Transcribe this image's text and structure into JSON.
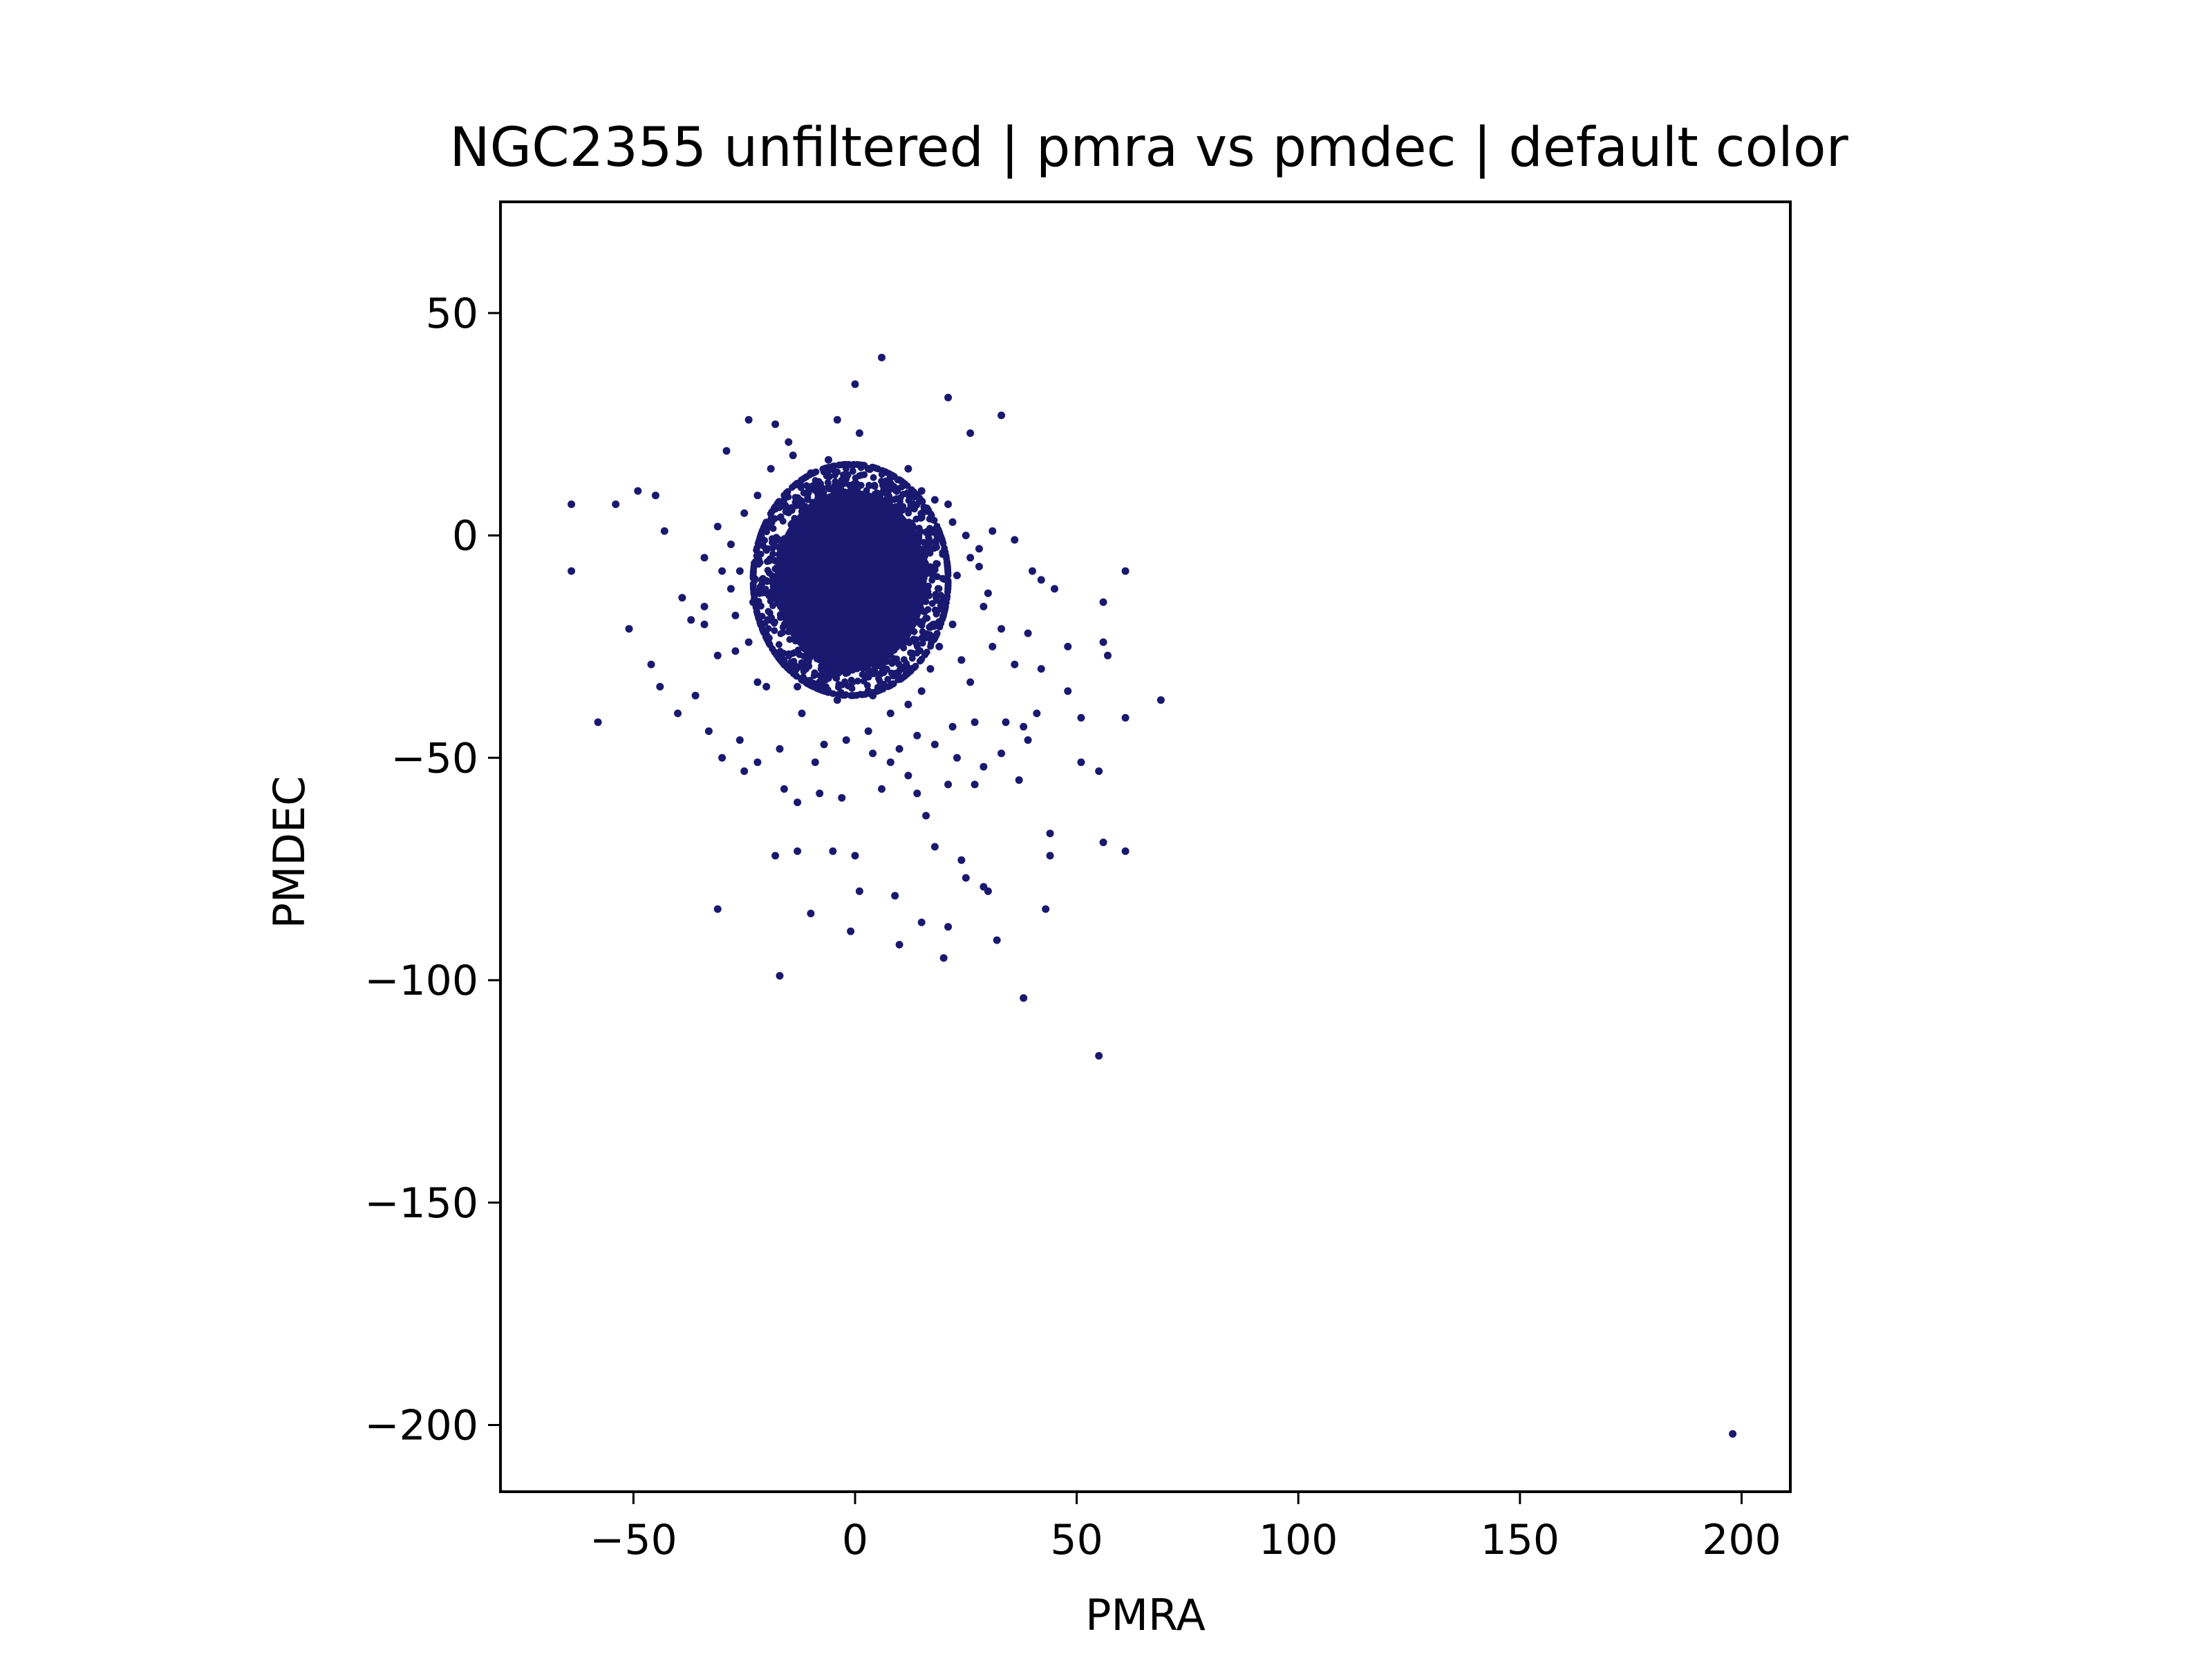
{
  "chart_data": {
    "type": "scatter",
    "title": "NGC2355 unfiltered | pmra vs pmdec | default color",
    "xlabel": "PMRA",
    "ylabel": "PMDEC",
    "xlim": [
      -80,
      211
    ],
    "ylim": [
      -215,
      75
    ],
    "xticks": [
      -50,
      0,
      50,
      100,
      150,
      200
    ],
    "yticks": [
      -200,
      -150,
      -100,
      -50,
      0,
      50
    ],
    "xtick_labels": [
      "−50",
      "0",
      "50",
      "100",
      "150",
      "200"
    ],
    "ytick_labels": [
      "−200",
      "−150",
      "−100",
      "−50",
      "0",
      "50"
    ],
    "grid": false,
    "legend": "none",
    "marker_color": "#191970",
    "series": [
      {
        "core": {
          "center": [
            -1,
            -10
          ],
          "radius_x": 22,
          "radius_y": 26,
          "approx_points": 4000
        },
        "points": [
          [
            -64,
            7
          ],
          [
            -64,
            -8
          ],
          [
            -54,
            7
          ],
          [
            -49,
            10
          ],
          [
            -45,
            9
          ],
          [
            -43,
            1
          ],
          [
            -51,
            -21
          ],
          [
            -46,
            -29
          ],
          [
            -44,
            -34
          ],
          [
            -40,
            -40
          ],
          [
            -36,
            -36
          ],
          [
            -33,
            -44
          ],
          [
            -58,
            -42
          ],
          [
            -34,
            -16
          ],
          [
            -31,
            2
          ],
          [
            -30,
            -50
          ],
          [
            -25,
            -53
          ],
          [
            -26,
            -46
          ],
          [
            -28,
            -12
          ],
          [
            -24,
            26
          ],
          [
            -18,
            25
          ],
          [
            -15,
            21
          ],
          [
            -29,
            19
          ],
          [
            -31,
            -84
          ],
          [
            -18,
            -72
          ],
          [
            -17,
            -99
          ],
          [
            -13,
            -60
          ],
          [
            -13,
            -71
          ],
          [
            -10,
            -85
          ],
          [
            -5,
            -71
          ],
          [
            -8,
            -58
          ],
          [
            -3,
            -59
          ],
          [
            0,
            34
          ],
          [
            6,
            40
          ],
          [
            21,
            31
          ],
          [
            33,
            27
          ],
          [
            26,
            23
          ],
          [
            1,
            23
          ],
          [
            -1,
            -89
          ],
          [
            1,
            -80
          ],
          [
            0,
            -72
          ],
          [
            9,
            -81
          ],
          [
            10,
            -92
          ],
          [
            15,
            -87
          ],
          [
            18,
            -70
          ],
          [
            20,
            -95
          ],
          [
            21,
            -88
          ],
          [
            24,
            -73
          ],
          [
            25,
            -77
          ],
          [
            29,
            -79
          ],
          [
            30,
            -80
          ],
          [
            32,
            -91
          ],
          [
            38,
            -104
          ],
          [
            43,
            -84
          ],
          [
            44,
            -67
          ],
          [
            44,
            -72
          ],
          [
            55,
            -117
          ],
          [
            56,
            -69
          ],
          [
            61,
            -71
          ],
          [
            55,
            -53
          ],
          [
            51,
            -41
          ],
          [
            61,
            -41
          ],
          [
            69,
            -37
          ],
          [
            48,
            -35
          ],
          [
            51,
            -51
          ],
          [
            41,
            -40
          ],
          [
            39,
            -46
          ],
          [
            38,
            -43
          ],
          [
            37,
            -55
          ],
          [
            34,
            -42
          ],
          [
            36,
            -29
          ],
          [
            39,
            -22
          ],
          [
            42,
            -10
          ],
          [
            40,
            -8
          ],
          [
            45,
            -12
          ],
          [
            61,
            -8
          ],
          [
            56,
            -24
          ],
          [
            57,
            -27
          ],
          [
            56,
            -15
          ],
          [
            48,
            -25
          ],
          [
            36,
            -1
          ],
          [
            31,
            1
          ],
          [
            21,
            7
          ],
          [
            26,
            -5
          ],
          [
            28,
            -3
          ],
          [
            30,
            -13
          ],
          [
            33,
            -21
          ],
          [
            27,
            -42
          ],
          [
            23,
            -50
          ],
          [
            27,
            -56
          ],
          [
            21,
            -56
          ],
          [
            16,
            -63
          ],
          [
            14,
            -58
          ],
          [
            12,
            -54
          ],
          [
            8,
            -51
          ],
          [
            6,
            -57
          ],
          [
            3,
            -44
          ],
          [
            -2,
            -46
          ],
          [
            -7,
            -47
          ],
          [
            -12,
            -40
          ],
          [
            -17,
            -48
          ],
          [
            -20,
            -34
          ],
          [
            -22,
            -33
          ],
          [
            -27,
            -26
          ],
          [
            -31,
            -27
          ],
          [
            -34,
            -20
          ],
          [
            -39,
            -14
          ],
          [
            -37,
            -19
          ],
          [
            -34,
            -5
          ],
          [
            -28,
            -2
          ],
          [
            -25,
            5
          ],
          [
            -22,
            9
          ],
          [
            -19,
            15
          ],
          [
            -14,
            18
          ],
          [
            -10,
            14
          ],
          [
            -6,
            17
          ],
          [
            3,
            15
          ],
          [
            8,
            13
          ],
          [
            12,
            15
          ],
          [
            15,
            10
          ],
          [
            18,
            8
          ],
          [
            22,
            3
          ],
          [
            25,
            0
          ],
          [
            28,
            -7
          ],
          [
            29,
            -16
          ],
          [
            31,
            -25
          ],
          [
            -21,
            -10
          ],
          [
            -23,
            -15
          ],
          [
            -21,
            -20
          ],
          [
            -24,
            -24
          ],
          [
            -20,
            2
          ],
          [
            -18,
            6
          ],
          [
            17,
            -30
          ],
          [
            15,
            -35
          ],
          [
            12,
            -38
          ],
          [
            8,
            -40
          ],
          [
            4,
            -36
          ],
          [
            -4,
            -37
          ],
          [
            -8,
            -33
          ],
          [
            -13,
            -34
          ],
          [
            -16,
            -29
          ],
          [
            19,
            -25
          ],
          [
            22,
            -20
          ],
          [
            20,
            -14
          ],
          [
            23,
            -9
          ],
          [
            24,
            -28
          ],
          [
            26,
            -33
          ],
          [
            -26,
            -8
          ],
          [
            -27,
            -18
          ],
          [
            -30,
            -8
          ],
          [
            -16,
            -57
          ],
          [
            -22,
            -51
          ],
          [
            -9,
            -51
          ],
          [
            10,
            -48
          ],
          [
            14,
            -45
          ],
          [
            18,
            -47
          ],
          [
            22,
            -43
          ],
          [
            -4,
            26
          ],
          [
            4,
            -49
          ],
          [
            29,
            -52
          ],
          [
            33,
            -49
          ],
          [
            42,
            -30
          ]
        ]
      }
    ]
  }
}
